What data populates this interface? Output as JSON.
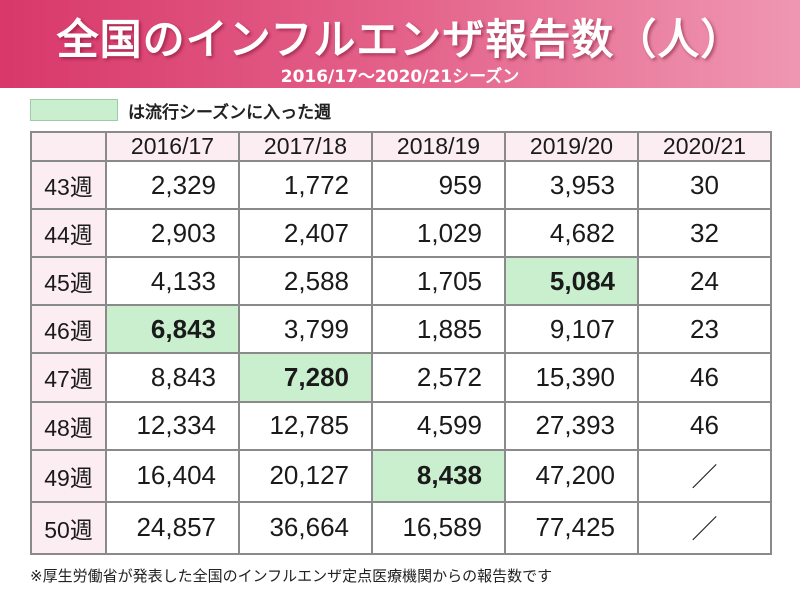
{
  "title": "全国のインフルエンザ報告数（人）",
  "subtitle": "2016/17〜2020/21シーズン",
  "legend": {
    "label": "は流行シーズンに入った週",
    "color": "#c9efcf"
  },
  "columns": [
    "2016/17",
    "2017/18",
    "2018/19",
    "2019/20",
    "2020/21"
  ],
  "rows": [
    {
      "week": "43週",
      "values": [
        "2,329",
        "1,772",
        "959",
        "3,953",
        "30"
      ]
    },
    {
      "week": "44週",
      "values": [
        "2,903",
        "2,407",
        "1,029",
        "4,682",
        "32"
      ]
    },
    {
      "week": "45週",
      "values": [
        "4,133",
        "2,588",
        "1,705",
        "5,084",
        "24"
      ]
    },
    {
      "week": "46週",
      "values": [
        "6,843",
        "3,799",
        "1,885",
        "9,107",
        "23"
      ]
    },
    {
      "week": "47週",
      "values": [
        "8,843",
        "7,280",
        "2,572",
        "15,390",
        "46"
      ]
    },
    {
      "week": "48週",
      "values": [
        "12,334",
        "12,785",
        "4,599",
        "27,393",
        "46"
      ]
    },
    {
      "week": "49週",
      "values": [
        "16,404",
        "20,127",
        "8,438",
        "47,200",
        "／"
      ]
    },
    {
      "week": "50週",
      "values": [
        "24,857",
        "36,664",
        "16,589",
        "77,425",
        "／"
      ]
    }
  ],
  "highlights": [
    {
      "season": "2016/17",
      "week": "46週"
    },
    {
      "season": "2017/18",
      "week": "47週"
    },
    {
      "season": "2018/19",
      "week": "49週"
    },
    {
      "season": "2019/20",
      "week": "45週"
    }
  ],
  "footnote": "※厚生労働省が発表した全国のインフルエンザ定点医療機関からの報告数です",
  "colors": {
    "banner": "#d8386a",
    "header_bg": "#fcedf2",
    "highlight": "#c9efcf"
  },
  "chart_data": {
    "type": "table",
    "title": "全国のインフルエンザ報告数（人）",
    "subtitle": "2016/17〜2020/21シーズン",
    "columns": [
      "2016/17",
      "2017/18",
      "2018/19",
      "2019/20",
      "2020/21"
    ],
    "row_labels": [
      "43週",
      "44週",
      "45週",
      "46週",
      "47週",
      "48週",
      "49週",
      "50週"
    ],
    "cells": [
      [
        "2,329",
        "1,772",
        "959",
        "3,953",
        "30"
      ],
      [
        "2,903",
        "2,407",
        "1,029",
        "4,682",
        "32"
      ],
      [
        "4,133",
        "2,588",
        "1,705",
        "5,084",
        "24"
      ],
      [
        "6,843",
        "3,799",
        "1,885",
        "9,107",
        "23"
      ],
      [
        "8,843",
        "7,280",
        "2,572",
        "15,390",
        "46"
      ],
      [
        "12,334",
        "12,785",
        "4,599",
        "27,393",
        "46"
      ],
      [
        "16,404",
        "20,127",
        "8,438",
        "47,200",
        "／"
      ],
      [
        "24,857",
        "36,664",
        "16,589",
        "77,425",
        "／"
      ]
    ]
  }
}
